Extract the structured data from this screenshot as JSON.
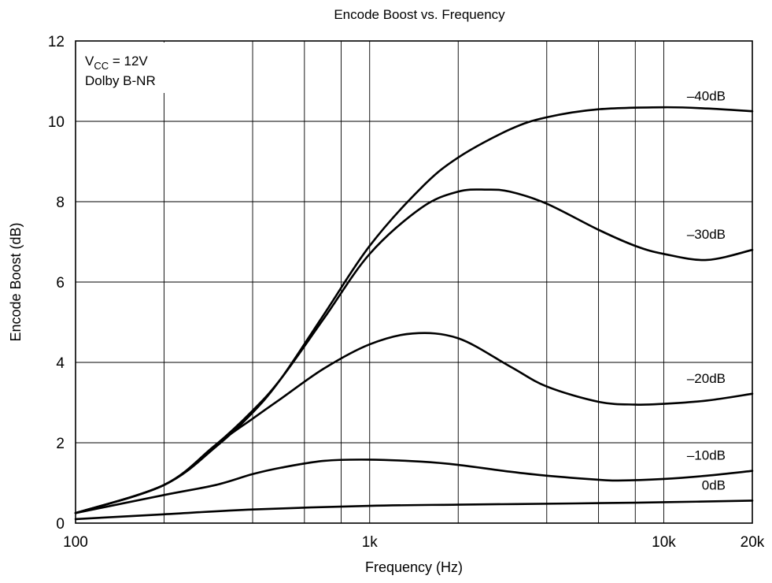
{
  "chart_data": {
    "type": "line",
    "title": "Encode Boost vs. Frequency",
    "xlabel": "Frequency  (Hz)",
    "ylabel": "Encode Boost  (dB)",
    "x_scale": "log",
    "xlim": [
      100,
      20000
    ],
    "ylim": [
      0,
      12
    ],
    "x_ticks": [
      {
        "value": 100,
        "label": "100"
      },
      {
        "value": 1000,
        "label": "1k"
      },
      {
        "value": 10000,
        "label": "10k"
      },
      {
        "value": 20000,
        "label": "20k"
      }
    ],
    "y_ticks": [
      {
        "value": 0,
        "label": "0"
      },
      {
        "value": 2,
        "label": "2"
      },
      {
        "value": 4,
        "label": "4"
      },
      {
        "value": 6,
        "label": "6"
      },
      {
        "value": 8,
        "label": "8"
      },
      {
        "value": 10,
        "label": "10"
      },
      {
        "value": 12,
        "label": "12"
      }
    ],
    "grid": true,
    "annotations": {
      "vcc_prefix": "V",
      "vcc_subscript": "CC",
      "vcc_value": " = 12V",
      "mode": "Dolby B-NR"
    },
    "series": [
      {
        "name": "–40dB",
        "x": [
          100,
          200,
          300,
          400,
          500,
          700,
          1000,
          1500,
          2000,
          3000,
          4000,
          6000,
          10000,
          14000,
          20000
        ],
        "y": [
          0.25,
          0.95,
          1.9,
          2.75,
          3.6,
          5.2,
          6.9,
          8.35,
          9.1,
          9.8,
          10.1,
          10.3,
          10.35,
          10.32,
          10.25
        ]
      },
      {
        "name": "–30dB",
        "x": [
          100,
          200,
          300,
          400,
          500,
          700,
          1000,
          1500,
          2000,
          2500,
          3000,
          4000,
          6000,
          8000,
          10000,
          14000,
          20000
        ],
        "y": [
          0.25,
          0.95,
          1.95,
          2.8,
          3.6,
          5.1,
          6.7,
          7.85,
          8.25,
          8.3,
          8.25,
          7.95,
          7.3,
          6.9,
          6.7,
          6.55,
          6.8
        ]
      },
      {
        "name": "–20dB",
        "x": [
          100,
          200,
          300,
          400,
          500,
          700,
          1000,
          1400,
          2000,
          3000,
          4000,
          6000,
          8000,
          10000,
          14000,
          20000
        ],
        "y": [
          0.25,
          0.95,
          1.95,
          2.6,
          3.1,
          3.85,
          4.45,
          4.72,
          4.6,
          3.9,
          3.4,
          3.02,
          2.95,
          2.97,
          3.05,
          3.22
        ]
      },
      {
        "name": "–10dB",
        "x": [
          100,
          200,
          300,
          400,
          500,
          700,
          1000,
          1500,
          2000,
          3000,
          4000,
          6000,
          7000,
          10000,
          14000,
          20000
        ],
        "y": [
          0.25,
          0.7,
          0.95,
          1.22,
          1.38,
          1.55,
          1.58,
          1.53,
          1.45,
          1.28,
          1.18,
          1.08,
          1.06,
          1.1,
          1.18,
          1.3
        ]
      },
      {
        "name": "0dB",
        "x": [
          100,
          200,
          400,
          1000,
          2000,
          5000,
          10000,
          20000
        ],
        "y": [
          0.1,
          0.22,
          0.34,
          0.43,
          0.46,
          0.49,
          0.52,
          0.56
        ]
      }
    ]
  }
}
